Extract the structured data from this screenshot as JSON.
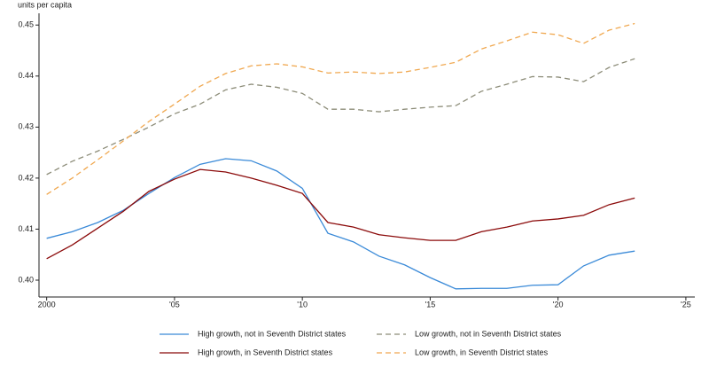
{
  "chart_data": {
    "type": "line",
    "y_label": "units per capita",
    "x": [
      2000,
      2001,
      2002,
      2003,
      2004,
      2005,
      2006,
      2007,
      2008,
      2009,
      2010,
      2011,
      2012,
      2013,
      2014,
      2015,
      2016,
      2017,
      2018,
      2019,
      2020,
      2021,
      2022,
      2023
    ],
    "xlim": [
      1999.7,
      2025.35
    ],
    "xticks": [
      2000,
      {
        "value": 2005,
        "label": "'05"
      },
      {
        "value": 2010,
        "label": "'10"
      },
      {
        "value": 2015,
        "label": "'15"
      },
      {
        "value": 2020,
        "label": "'20"
      },
      {
        "value": 2025,
        "label": "'25"
      }
    ],
    "ylim": [
      0.3967,
      0.4523
    ],
    "yticks": [
      {
        "value": 0.4,
        "label": "0.40"
      },
      0.41,
      0.42,
      0.43,
      0.44,
      0.45
    ],
    "series": [
      {
        "name": "High growth, not in Seventh District states",
        "color": "#3a8ad8",
        "dash": false,
        "values": [
          0.4082,
          0.4095,
          0.4113,
          0.4137,
          0.417,
          0.4201,
          0.4227,
          0.4238,
          0.4234,
          0.4214,
          0.418,
          0.4092,
          0.4075,
          0.4047,
          0.403,
          0.4005,
          0.3983,
          0.3984,
          0.3984,
          0.399,
          0.3991,
          0.4028,
          0.4049,
          0.4057
        ]
      },
      {
        "name": "High growth, in Seventh District states",
        "color": "#8b0a0a",
        "dash": false,
        "values": [
          0.4042,
          0.4069,
          0.4102,
          0.4135,
          0.4174,
          0.4198,
          0.4217,
          0.4212,
          0.42,
          0.4186,
          0.417,
          0.4113,
          0.4104,
          0.4089,
          0.4083,
          0.4078,
          0.4078,
          0.4095,
          0.4104,
          0.4116,
          0.412,
          0.4127,
          0.4148,
          0.4161
        ]
      },
      {
        "name": "Low growth, not in Seventh District states",
        "color": "#8c8c78",
        "dash": true,
        "values": [
          0.4207,
          0.4233,
          0.4253,
          0.4276,
          0.43,
          0.4326,
          0.4345,
          0.4373,
          0.4384,
          0.4378,
          0.4366,
          0.4335,
          0.4335,
          0.433,
          0.4335,
          0.4339,
          0.4342,
          0.437,
          0.4384,
          0.4399,
          0.4398,
          0.4389,
          0.4417,
          0.4434
        ]
      },
      {
        "name": "Low growth, in Seventh District states",
        "color": "#f0a850",
        "dash": true,
        "values": [
          0.4168,
          0.42,
          0.4236,
          0.4273,
          0.4311,
          0.4345,
          0.438,
          0.4405,
          0.442,
          0.4424,
          0.4418,
          0.4406,
          0.4408,
          0.4405,
          0.4408,
          0.4417,
          0.4427,
          0.4453,
          0.4469,
          0.4486,
          0.4481,
          0.4464,
          0.449,
          0.4503
        ]
      }
    ]
  }
}
